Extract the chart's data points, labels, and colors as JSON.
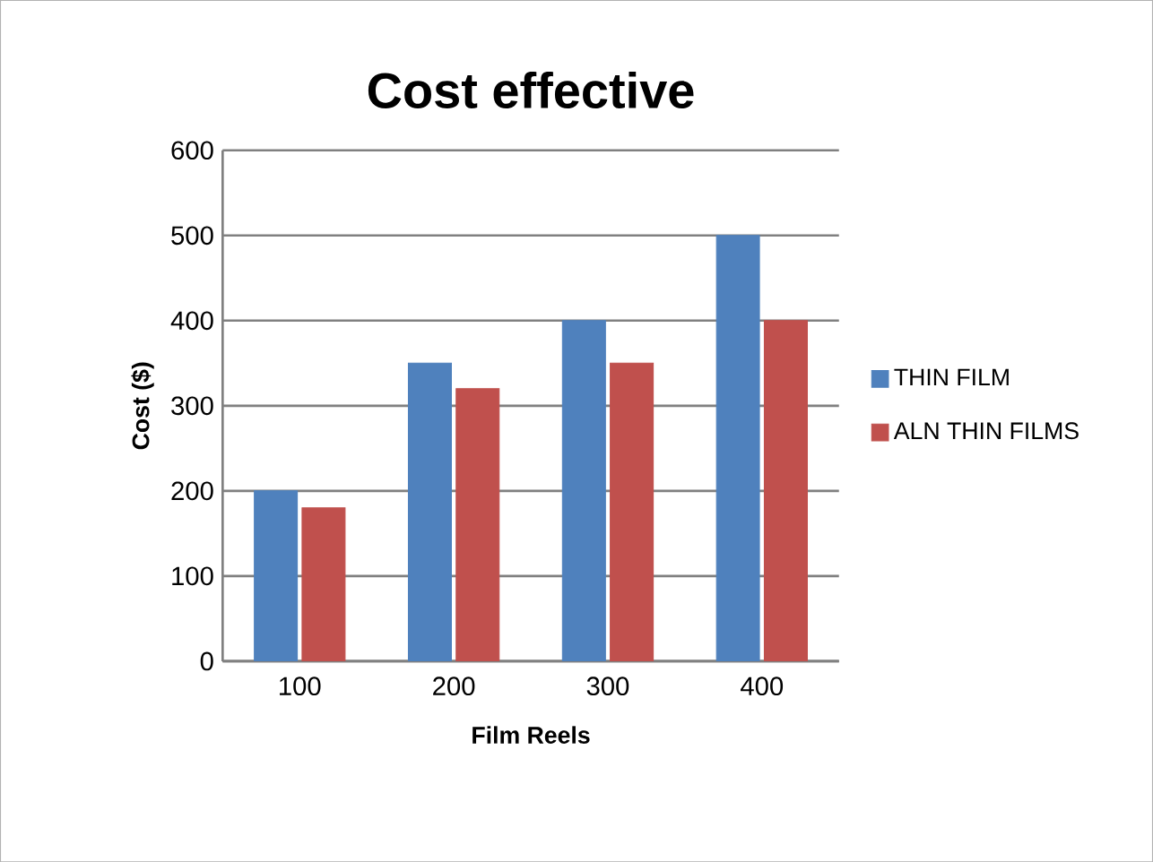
{
  "chart_data": {
    "type": "bar",
    "title": "Cost effective",
    "xlabel": "Film Reels",
    "ylabel": "Cost ($)",
    "categories": [
      "100",
      "200",
      "300",
      "400"
    ],
    "series": [
      {
        "name": "THIN FILM",
        "color": "#4f81bd",
        "values": [
          200,
          350,
          400,
          500
        ]
      },
      {
        "name": "ALN THIN FILMS",
        "color": "#c0504d",
        "values": [
          180,
          320,
          350,
          400
        ]
      }
    ],
    "ylim": [
      0,
      600
    ],
    "yticks": [
      0,
      100,
      200,
      300,
      400,
      500,
      600
    ],
    "grid": "y",
    "legend": "right"
  }
}
